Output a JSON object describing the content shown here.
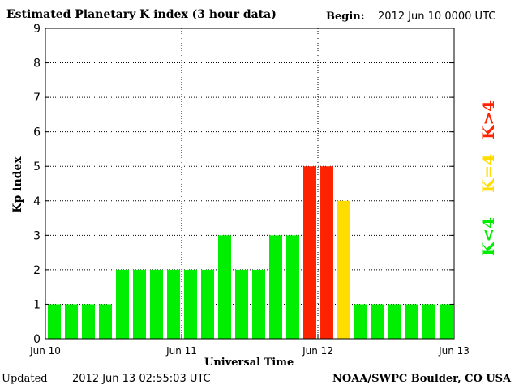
{
  "header": {
    "title": "Estimated Planetary K index (3 hour data)",
    "begin_label": "Begin:",
    "begin_value": "2012 Jun 10 0000 UTC"
  },
  "footer": {
    "updated_label": "Updated",
    "updated_value": "2012 Jun 13 02:55:03 UTC",
    "credit": "NOAA/SWPC Boulder, CO USA"
  },
  "legend": {
    "high": "K>4",
    "equal": "K=4",
    "low": "K<4"
  },
  "colors": {
    "low": "#00ee00",
    "equal": "#ffdd00",
    "high": "#ff2200"
  },
  "chart_data": {
    "type": "bar",
    "title": "Estimated Planetary K index (3 hour data)",
    "xlabel": "Universal Time",
    "ylabel": "Kp index",
    "ylim": [
      0,
      9
    ],
    "yticks": [
      "0",
      "1",
      "2",
      "3",
      "4",
      "5",
      "6",
      "7",
      "8",
      "9"
    ],
    "xticks": [
      "Jun 10",
      "Jun 11",
      "Jun 12",
      "Jun 13"
    ],
    "grid": true,
    "values": [
      1,
      1,
      1,
      1,
      2,
      2,
      2,
      2,
      2,
      2,
      3,
      2,
      2,
      3,
      3,
      5,
      5,
      4,
      1,
      1,
      1,
      1,
      1,
      1
    ]
  }
}
